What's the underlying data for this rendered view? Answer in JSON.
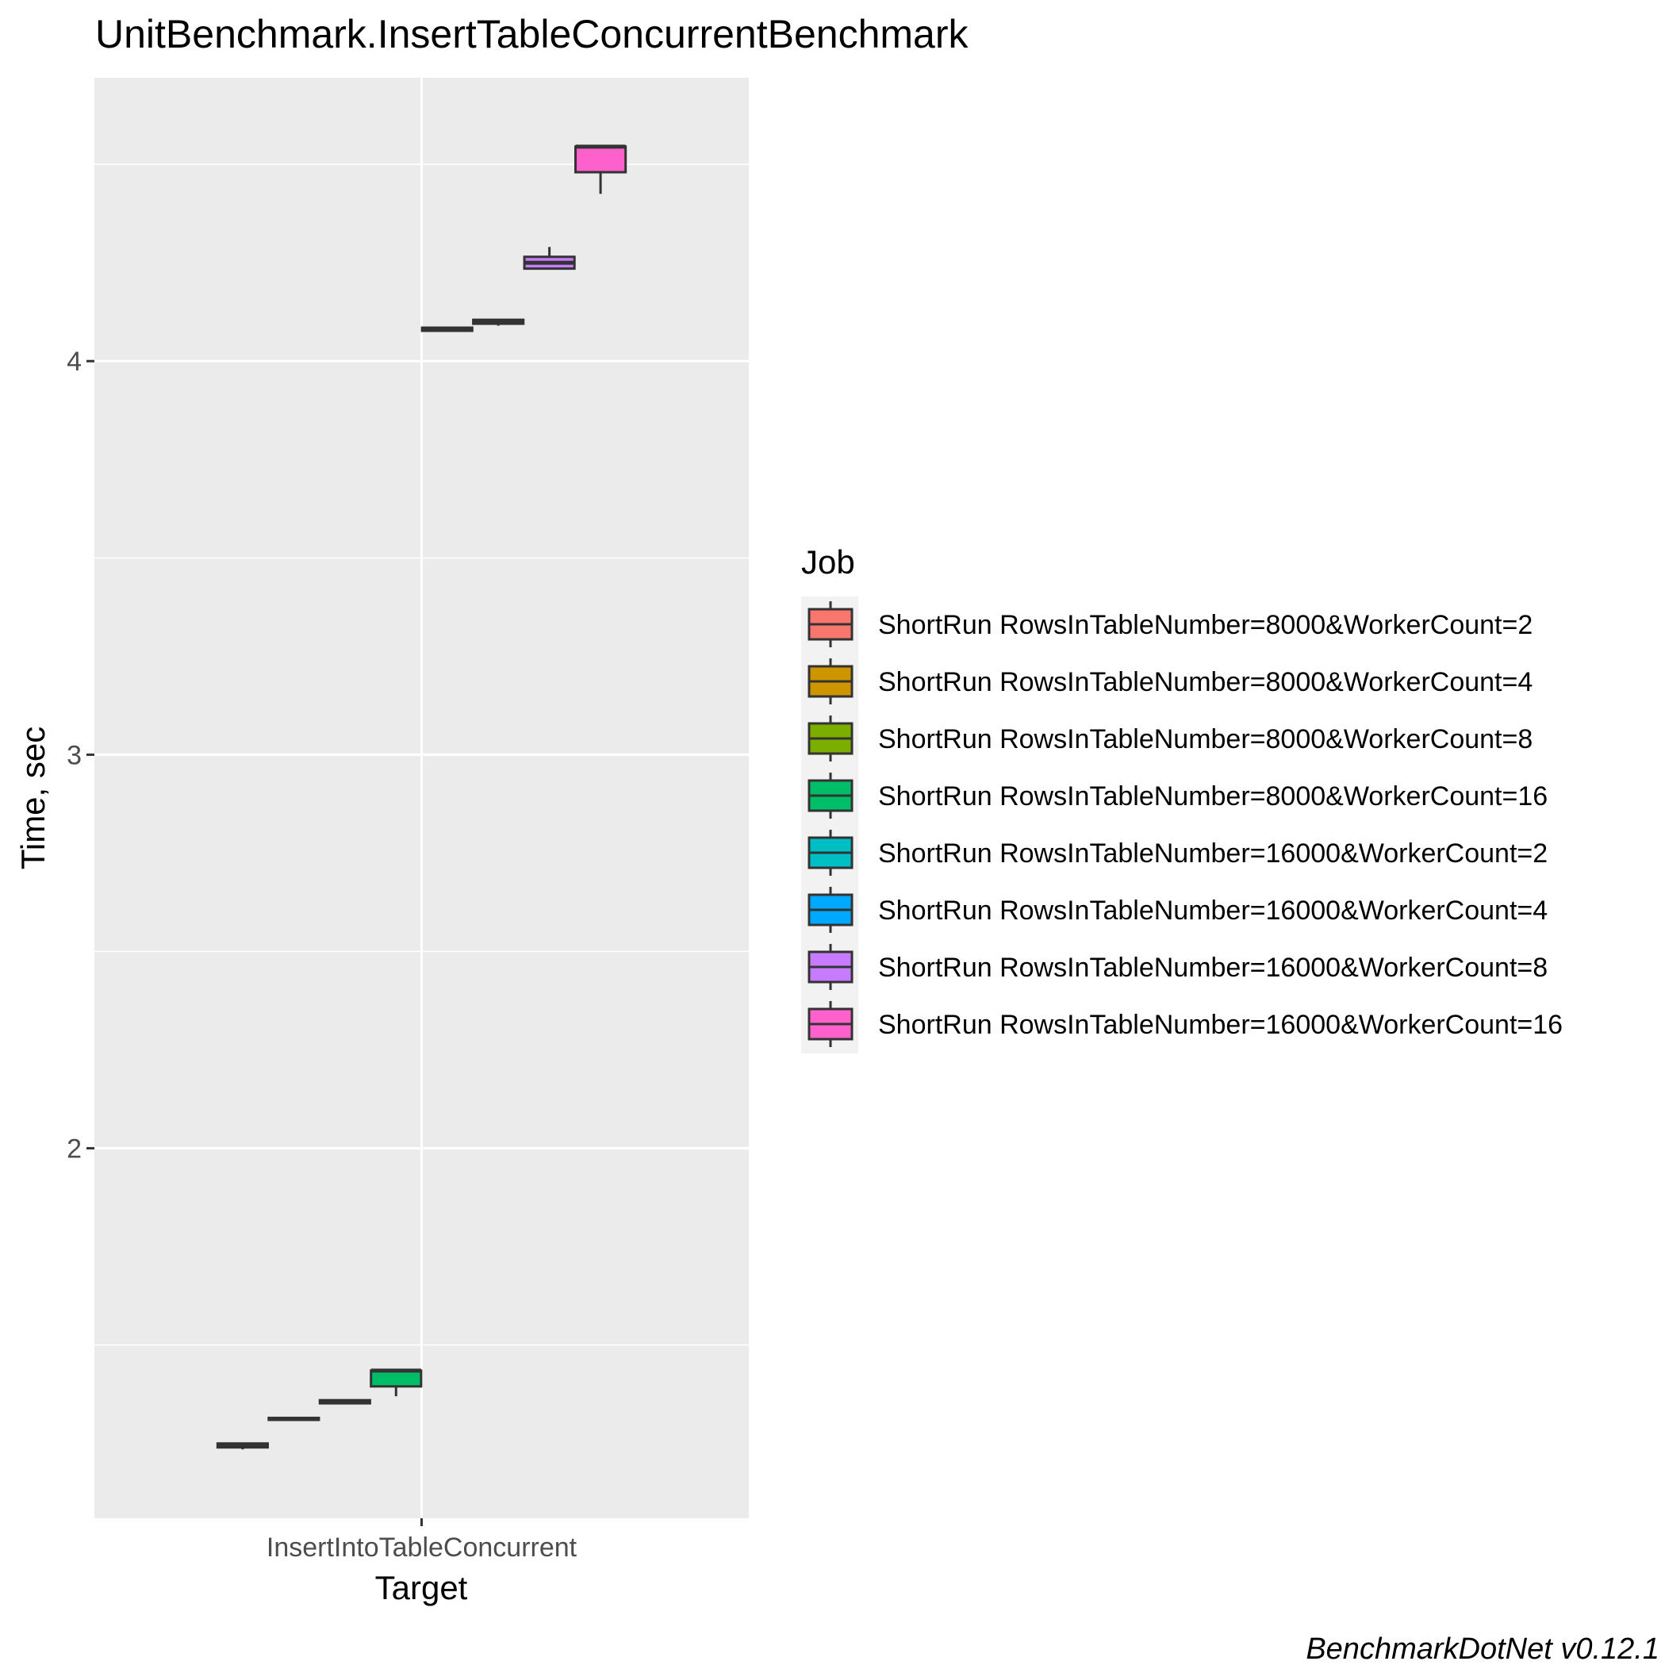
{
  "chart_data": {
    "type": "boxplot",
    "title": "UnitBenchmark.InsertTableConcurrentBenchmark",
    "xlabel": "Target",
    "ylabel": "Time, sec",
    "categories": [
      "InsertIntoTableConcurrent"
    ],
    "yticks": [
      2,
      3,
      4
    ],
    "ytick_labels": [
      "2",
      "3",
      "4"
    ],
    "ylim": [
      1.06,
      4.72
    ],
    "grid": true,
    "legend": {
      "title": "Job",
      "position": "right"
    },
    "footer": "BenchmarkDotNet v0.12.1",
    "series": [
      {
        "name": "ShortRun RowsInTableNumber=8000&WorkerCount=2",
        "color": "#F8766D",
        "min": 1.235,
        "q1": 1.24,
        "median": 1.245,
        "q3": 1.25,
        "max": 1.25
      },
      {
        "name": "ShortRun RowsInTableNumber=8000&WorkerCount=4",
        "color": "#CD9600",
        "min": 1.31,
        "q1": 1.31,
        "median": 1.312,
        "q3": 1.315,
        "max": 1.315
      },
      {
        "name": "ShortRun RowsInTableNumber=8000&WorkerCount=8",
        "color": "#7CAE00",
        "min": 1.352,
        "q1": 1.352,
        "median": 1.355,
        "q3": 1.36,
        "max": 1.362
      },
      {
        "name": "ShortRun RowsInTableNumber=8000&WorkerCount=16",
        "color": "#00BE67",
        "min": 1.37,
        "q1": 1.395,
        "median": 1.435,
        "q3": 1.435,
        "max": 1.435
      },
      {
        "name": "ShortRun RowsInTableNumber=16000&WorkerCount=2",
        "color": "#00BFC4",
        "min": 4.075,
        "q1": 4.077,
        "median": 4.08,
        "q3": 4.085,
        "max": 4.085
      },
      {
        "name": "ShortRun RowsInTableNumber=16000&WorkerCount=4",
        "color": "#00A9FF",
        "min": 4.09,
        "q1": 4.095,
        "median": 4.1,
        "q3": 4.105,
        "max": 4.105
      },
      {
        "name": "ShortRun RowsInTableNumber=16000&WorkerCount=8",
        "color": "#C77CFF",
        "min": 4.235,
        "q1": 4.235,
        "median": 4.25,
        "q3": 4.265,
        "max": 4.29
      },
      {
        "name": "ShortRun RowsInTableNumber=16000&WorkerCount=16",
        "color": "#FF61CC",
        "min": 4.425,
        "q1": 4.48,
        "median": 4.545,
        "q3": 4.545,
        "max": 4.545
      }
    ]
  }
}
